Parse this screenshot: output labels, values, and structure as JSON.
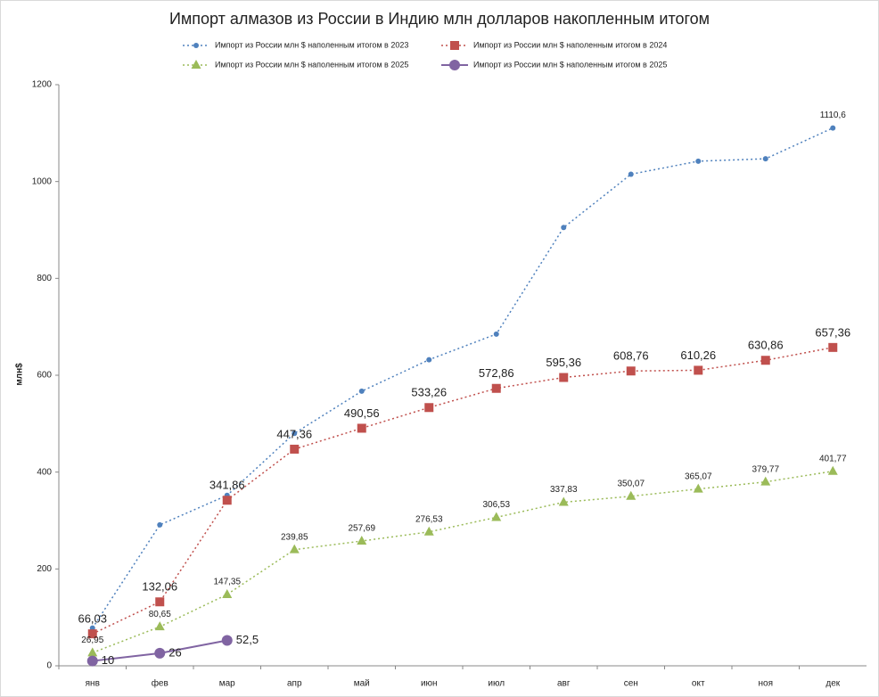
{
  "chart_data": {
    "type": "line",
    "title": "Импорт алмазов из России в Индию млн долларов накопленным итогом",
    "y_label": "млн$",
    "categories": [
      "янв",
      "фев",
      "мар",
      "апр",
      "май",
      "июн",
      "июл",
      "авг",
      "сен",
      "окт",
      "ноя",
      "дек"
    ],
    "series": [
      {
        "name": "Импорт из России млн $ наполенным итогом в 2023",
        "color": "#4f81bd",
        "marker": "circle",
        "line_style": "dotted",
        "values": [
          78,
          291,
          352,
          480,
          567,
          632,
          685,
          905,
          1015,
          1042,
          1047,
          1110.6
        ],
        "value_labels": [
          null,
          null,
          null,
          null,
          null,
          null,
          null,
          null,
          null,
          null,
          null,
          "1110,6"
        ]
      },
      {
        "name": "Импорт из России млн $ наполенным итогом в 2024",
        "color": "#c0504d",
        "marker": "square",
        "line_style": "dotted",
        "values": [
          66.03,
          132.06,
          341.86,
          447.36,
          490.56,
          533.26,
          572.86,
          595.36,
          608.76,
          610.26,
          630.86,
          657.36
        ],
        "value_labels": [
          "66,03",
          "132,06",
          "341,86",
          "447,36",
          "490,56",
          "533,26",
          "572,86",
          "595,36",
          "608,76",
          "610,26",
          "630,86",
          "657,36"
        ]
      },
      {
        "name": "Импорт из России млн $ наполенным итогом в 2025",
        "color": "#9bbb59",
        "marker": "triangle",
        "line_style": "dotted",
        "values": [
          26.95,
          80.65,
          147.35,
          239.85,
          257.69,
          276.53,
          306.53,
          337.83,
          350.07,
          365.07,
          379.77,
          401.77
        ],
        "value_labels": [
          "26,95",
          "80,65",
          "147,35",
          "239,85",
          "257,69",
          "276,53",
          "306,53",
          "337,83",
          "350,07",
          "365,07",
          "379,77",
          "401,77"
        ]
      },
      {
        "name": "Импорт из России млн $ наполенным итогом в 2025",
        "color": "#8064a2",
        "marker": "big-circle",
        "line_style": "solid",
        "values": [
          10,
          26,
          52.5,
          null,
          null,
          null,
          null,
          null,
          null,
          null,
          null,
          null
        ],
        "value_labels": [
          "10",
          "26",
          "52,5",
          null,
          null,
          null,
          null,
          null,
          null,
          null,
          null,
          null
        ]
      }
    ],
    "ylim": [
      0,
      1200
    ],
    "yticks": [
      0,
      200,
      400,
      600,
      800,
      1000,
      1200
    ],
    "grid": false
  }
}
